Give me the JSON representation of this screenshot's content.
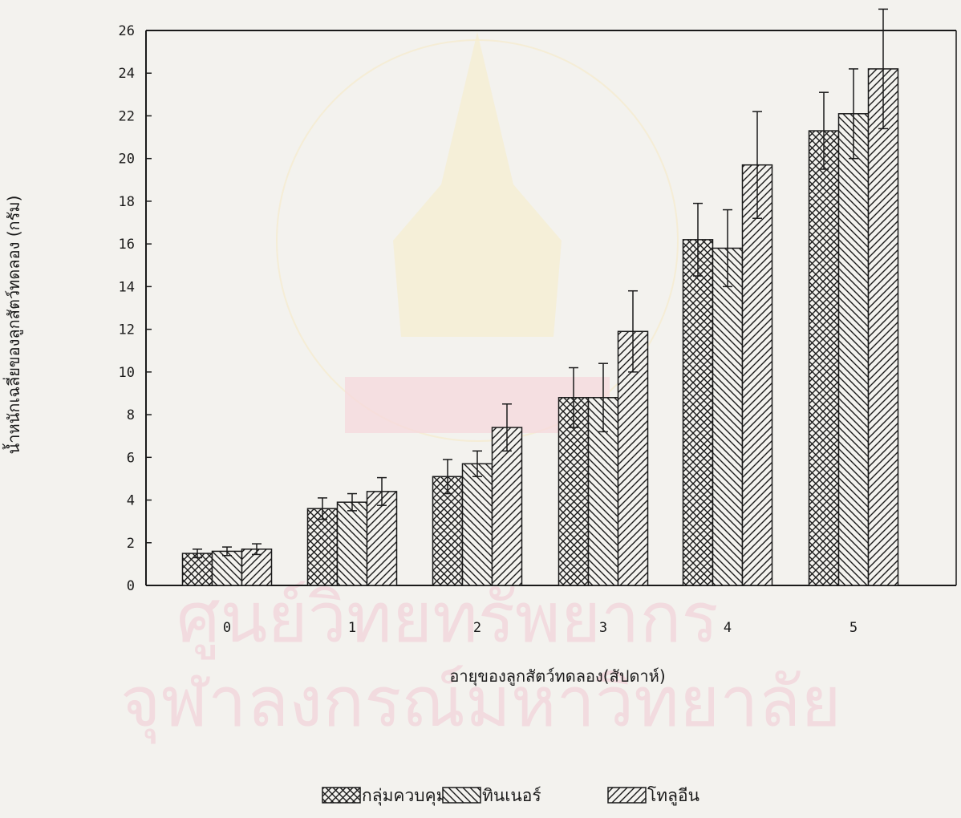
{
  "chart_data": {
    "type": "bar",
    "title": "",
    "xlabel": "อายุของลูกสัตว์ทดลอง(สัปดาห์)",
    "ylabel": "น้ำหนักเฉลี่ยของลูกสัตว์ทดลอง (กรัม)",
    "categories": [
      "0",
      "1",
      "2",
      "3",
      "4",
      "5"
    ],
    "ylim": [
      0,
      26
    ],
    "yticks": [
      0,
      2,
      4,
      6,
      8,
      10,
      12,
      14,
      16,
      18,
      20,
      22,
      24,
      26
    ],
    "grid": false,
    "legend_position": "bottom-center",
    "series": [
      {
        "name": "กลุ่มควบคุม",
        "pattern": "crosshatch",
        "values": [
          1.5,
          3.6,
          5.1,
          8.8,
          16.2,
          21.3
        ],
        "errors": [
          0.2,
          0.5,
          0.8,
          1.4,
          1.7,
          1.8
        ]
      },
      {
        "name": "ทินเนอร์",
        "pattern": "backslash",
        "values": [
          1.6,
          3.9,
          5.7,
          8.8,
          15.8,
          22.1
        ],
        "errors": [
          0.2,
          0.4,
          0.6,
          1.6,
          1.8,
          2.1
        ]
      },
      {
        "name": "โทลูอีน",
        "pattern": "slash",
        "values": [
          1.7,
          4.4,
          7.4,
          11.9,
          19.7,
          24.2
        ],
        "errors": [
          0.25,
          0.65,
          1.1,
          1.9,
          2.5,
          2.8
        ]
      }
    ]
  },
  "watermark": {
    "line1": "ศูนย์วิทยทรัพยากร",
    "line2": "จุฬาลงกรณ์มหาวิทยาลัย"
  },
  "colors": {
    "ink": "#1a1a1a",
    "paper": "#f3f2ee",
    "watermark_pink": "#f2d7dc",
    "watermark_gold": "#f7e7b8"
  }
}
